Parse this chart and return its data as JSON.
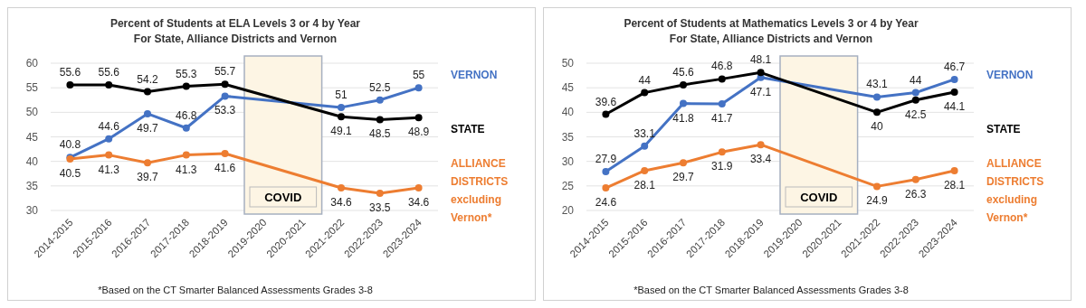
{
  "chart_data": [
    {
      "type": "line",
      "title": "Percent of Students at ELA Levels 3 or 4 by Year",
      "subtitle": "For State, Alliance Districts and Vernon",
      "categories": [
        "2014-2015",
        "2015-2016",
        "2016-2017",
        "2017-2018",
        "2018-2019",
        "2019-2020",
        "2020-2021",
        "2021-2022",
        "2022-2023",
        "2023-2024"
      ],
      "series": [
        {
          "name": "VERNON",
          "color": "#4472c4",
          "values": [
            40.8,
            44.6,
            49.7,
            46.8,
            53.3,
            null,
            null,
            51,
            52.5,
            55
          ]
        },
        {
          "name": "STATE",
          "color": "#000000",
          "values": [
            55.6,
            55.6,
            54.2,
            55.3,
            55.7,
            null,
            null,
            49.1,
            48.5,
            48.9
          ]
        },
        {
          "name": "ALLIANCE DISTRICTS excluding Vernon*",
          "color": "#ed7d31",
          "values": [
            40.5,
            41.3,
            39.7,
            41.3,
            41.6,
            null,
            null,
            34.6,
            33.5,
            34.6
          ]
        }
      ],
      "ylim": [
        30,
        60
      ],
      "yticks": [
        30,
        35,
        40,
        45,
        50,
        55,
        60
      ],
      "grid": "y",
      "legend": "right",
      "marker": "circle",
      "data_labels": true,
      "bands": [
        {
          "axis": "x",
          "from": "2019-2020",
          "to": "2020-2021",
          "label": "COVID",
          "color": "#fdf5e4"
        }
      ],
      "annotations": [
        "*Based on the CT Smarter Balanced Assessments Grades 3-8"
      ]
    },
    {
      "type": "line",
      "title": "Percent of Students at Mathematics Levels 3 or 4 by Year",
      "subtitle": "For State, Alliance Districts and Vernon",
      "categories": [
        "2014-2015",
        "2015-2016",
        "2016-2017",
        "2017-2018",
        "2018-2019",
        "2019-2020",
        "2020-2021",
        "2021-2022",
        "2022-2023",
        "2023-2024"
      ],
      "series": [
        {
          "name": "VERNON",
          "color": "#4472c4",
          "values": [
            27.9,
            33.1,
            41.8,
            41.7,
            47.1,
            null,
            null,
            43.1,
            44,
            46.7
          ]
        },
        {
          "name": "STATE",
          "color": "#000000",
          "values": [
            39.6,
            44,
            45.6,
            46.8,
            48.1,
            null,
            null,
            40,
            42.5,
            44.1
          ]
        },
        {
          "name": "ALLIANCE DISTRICTS excluding Vernon*",
          "color": "#ed7d31",
          "values": [
            24.6,
            28.1,
            29.7,
            31.9,
            33.4,
            null,
            null,
            24.9,
            26.3,
            28.1
          ]
        }
      ],
      "ylim": [
        20,
        50
      ],
      "yticks": [
        20,
        25,
        30,
        35,
        40,
        45,
        50
      ],
      "grid": "y",
      "legend": "right",
      "marker": "circle",
      "data_labels": true,
      "bands": [
        {
          "axis": "x",
          "from": "2019-2020",
          "to": "2020-2021",
          "label": "COVID",
          "color": "#fdf5e4"
        }
      ],
      "annotations": [
        "*Based on the CT Smarter Balanced Assessments Grades 3-8"
      ]
    }
  ]
}
